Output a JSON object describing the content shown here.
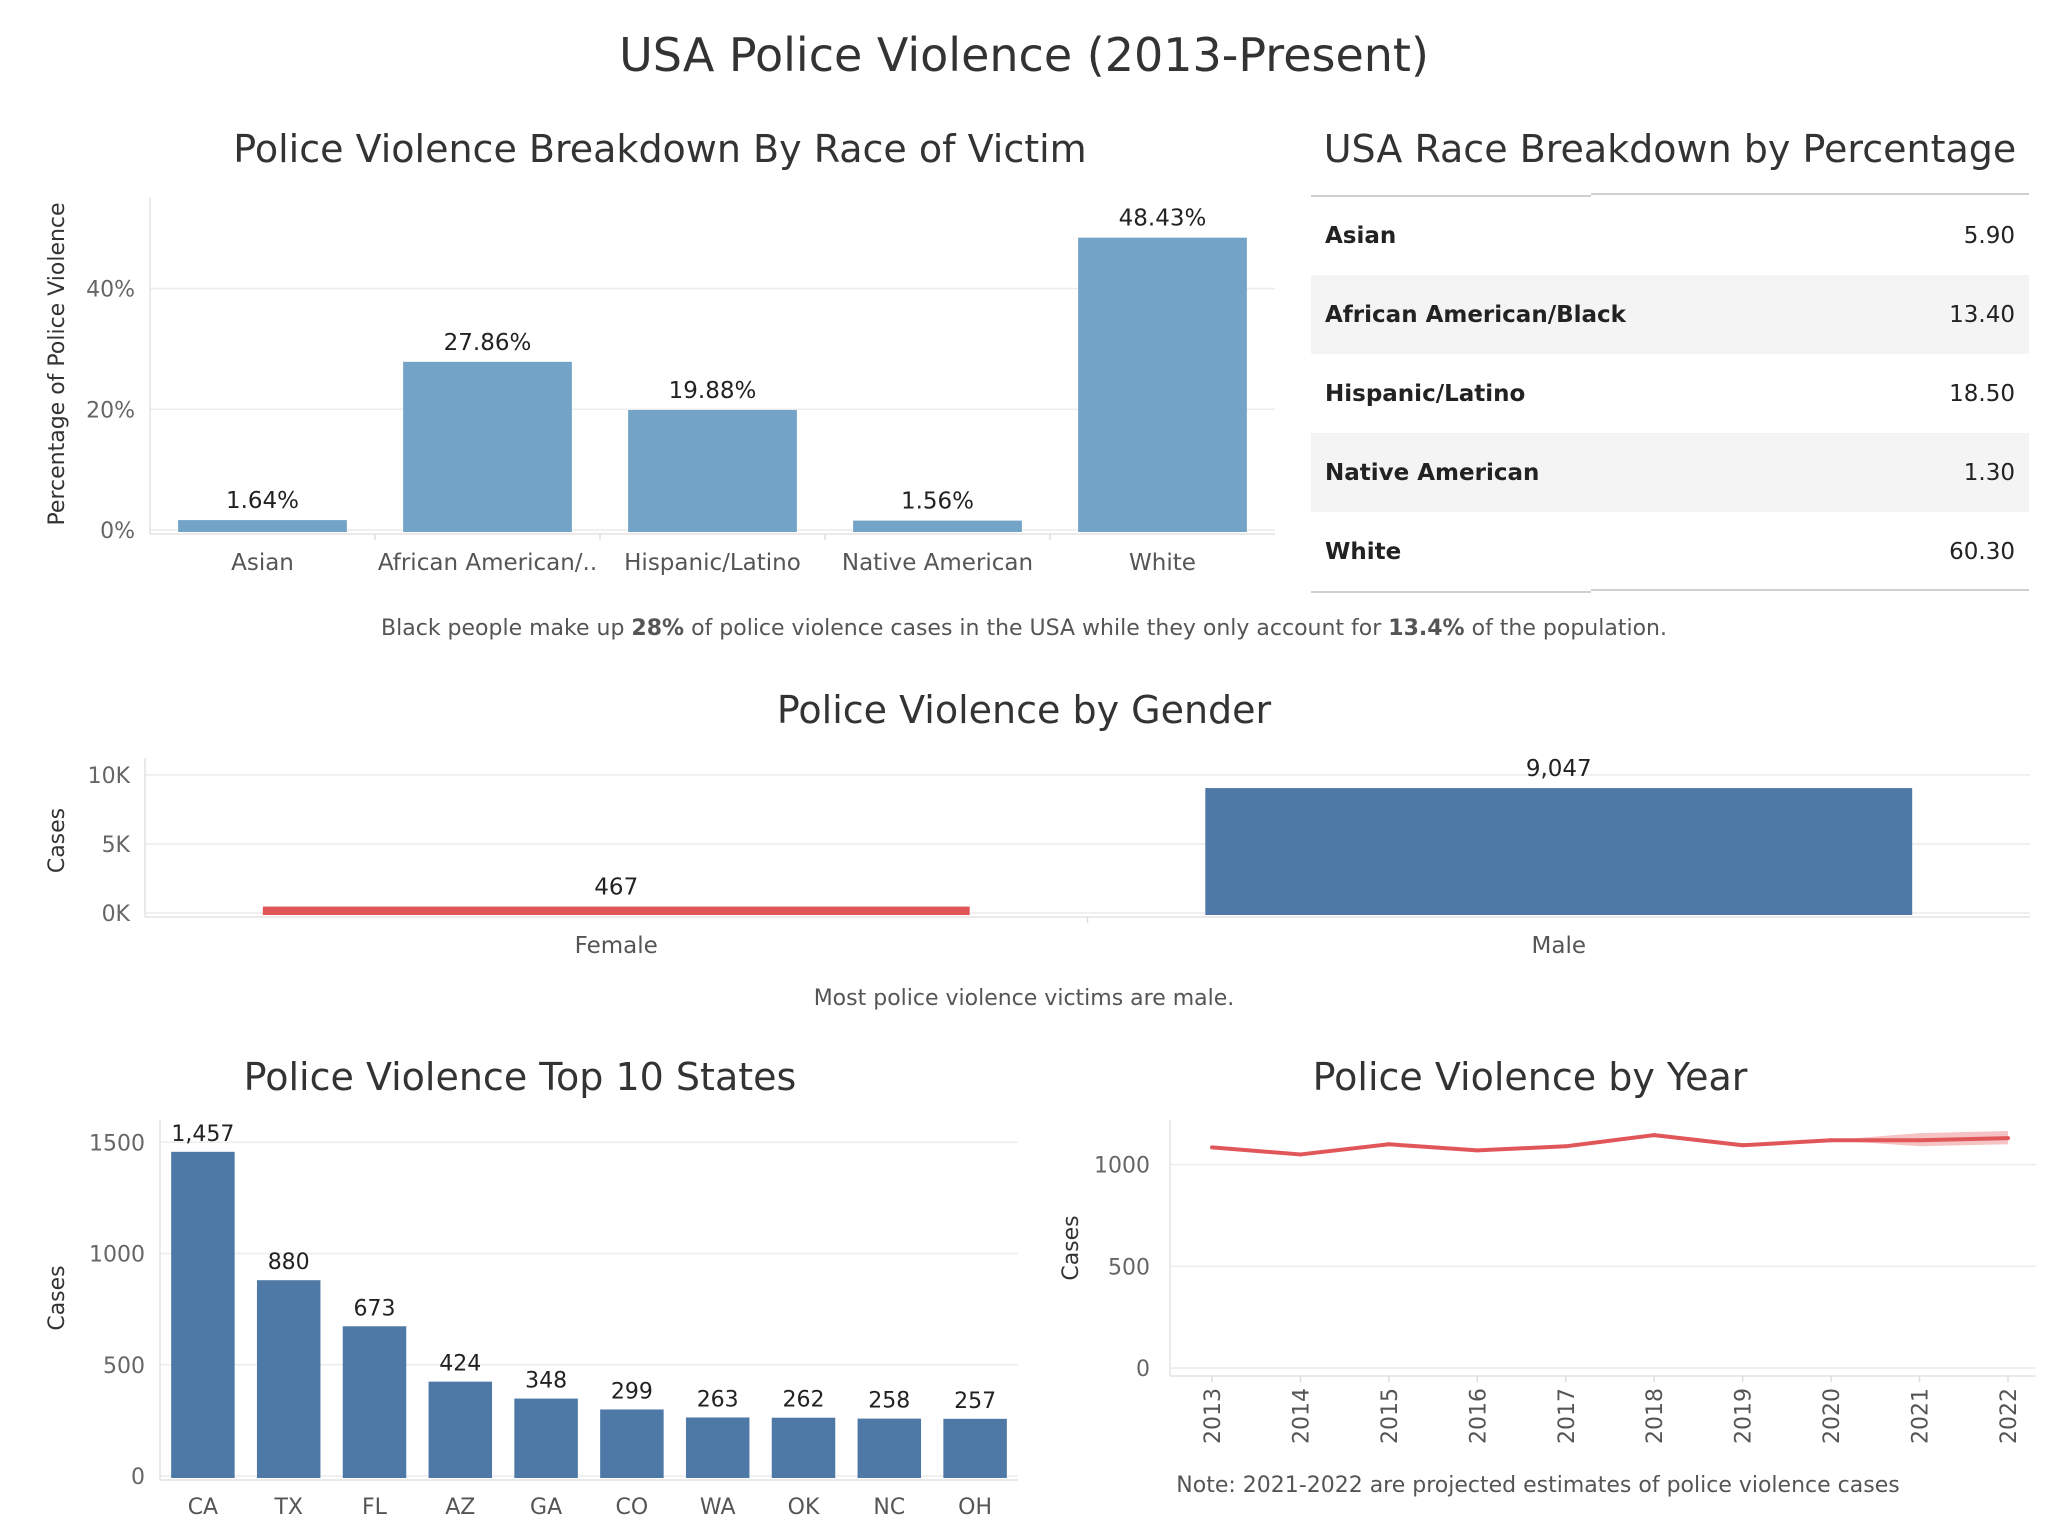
{
  "dashboard": {
    "title": "USA Police Violence (2013-Present)"
  },
  "race_chart": {
    "title": "Police Violence Breakdown By Race of Victim",
    "ylabel": "Percentage of Police Violence",
    "note": {
      "pre": "Black people make up ",
      "bold1": "28%",
      "mid": " of police violence cases in the USA while they only account for ",
      "bold2": "13.4%",
      "post": " of the population."
    }
  },
  "race_table": {
    "title": "USA Race Breakdown by Percentage",
    "rows": [
      {
        "name": "Asian",
        "value": "5.90"
      },
      {
        "name": "African American/Black",
        "value": "13.40"
      },
      {
        "name": "Hispanic/Latino",
        "value": "18.50"
      },
      {
        "name": "Native American",
        "value": "1.30"
      },
      {
        "name": "White",
        "value": "60.30"
      }
    ]
  },
  "gender_chart": {
    "title": "Police Violence by Gender",
    "note": "Most police violence victims are male."
  },
  "states_chart": {
    "title": "Police Violence Top 10 States"
  },
  "year_chart": {
    "title": "Police Violence by Year",
    "note": "Note: 2021-2022 are projected estimates of police violence cases"
  },
  "chart_data": [
    {
      "id": "race",
      "type": "bar",
      "title": "Police Violence Breakdown By Race of Victim",
      "xlabel": "",
      "ylabel": "Percentage of Police Violence",
      "categories": [
        "Asian",
        "African American/..",
        "Hispanic/Latino",
        "Native American",
        "White"
      ],
      "values": [
        1.64,
        27.86,
        19.88,
        1.56,
        48.43
      ],
      "value_labels": [
        "1.64%",
        "27.86%",
        "19.88%",
        "1.56%",
        "48.43%"
      ],
      "yticks": [
        0,
        20,
        40
      ],
      "ytick_labels": [
        "0%",
        "20%",
        "40%"
      ],
      "ylim": [
        0,
        55
      ],
      "grid": true,
      "color": "#74a3c8"
    },
    {
      "id": "gender",
      "type": "bar",
      "orientation": "vertical",
      "title": "Police Violence by Gender",
      "ylabel": "Cases",
      "categories": [
        "Female",
        "Male"
      ],
      "values": [
        467,
        9047
      ],
      "value_labels": [
        "467",
        "9,047"
      ],
      "colors": [
        "#e15759",
        "#4e79a7"
      ],
      "yticks": [
        0,
        5000,
        10000
      ],
      "ytick_labels": [
        "0K",
        "5K",
        "10K"
      ],
      "ylim": [
        0,
        10500
      ],
      "grid": true
    },
    {
      "id": "states",
      "type": "bar",
      "title": "Police Violence Top 10 States",
      "ylabel": "Cases",
      "categories": [
        "CA",
        "TX",
        "FL",
        "AZ",
        "GA",
        "CO",
        "WA",
        "OK",
        "NC",
        "OH"
      ],
      "values": [
        1457,
        880,
        673,
        424,
        348,
        299,
        263,
        262,
        258,
        257
      ],
      "value_labels": [
        "1,457",
        "880",
        "673",
        "424",
        "348",
        "299",
        "263",
        "262",
        "258",
        "257"
      ],
      "yticks": [
        0,
        500,
        1000,
        1500
      ],
      "ylim": [
        0,
        1600
      ],
      "grid": true,
      "color": "#4e79a7"
    },
    {
      "id": "year",
      "type": "line",
      "title": "Police Violence by Year",
      "ylabel": "Cases",
      "x": [
        "2013",
        "2014",
        "2015",
        "2016",
        "2017",
        "2018",
        "2019",
        "2020",
        "2021",
        "2022"
      ],
      "values": [
        1085,
        1050,
        1100,
        1070,
        1090,
        1145,
        1095,
        1120,
        1120,
        1130
      ],
      "projected_from": "2021",
      "projection_band": {
        "x": [
          "2020",
          "2021",
          "2022"
        ],
        "low": [
          1120,
          1090,
          1100
        ],
        "high": [
          1120,
          1155,
          1165
        ]
      },
      "yticks": [
        0,
        500,
        1000
      ],
      "ylim": [
        0,
        1180
      ],
      "grid": true,
      "color": "#e15759"
    }
  ]
}
